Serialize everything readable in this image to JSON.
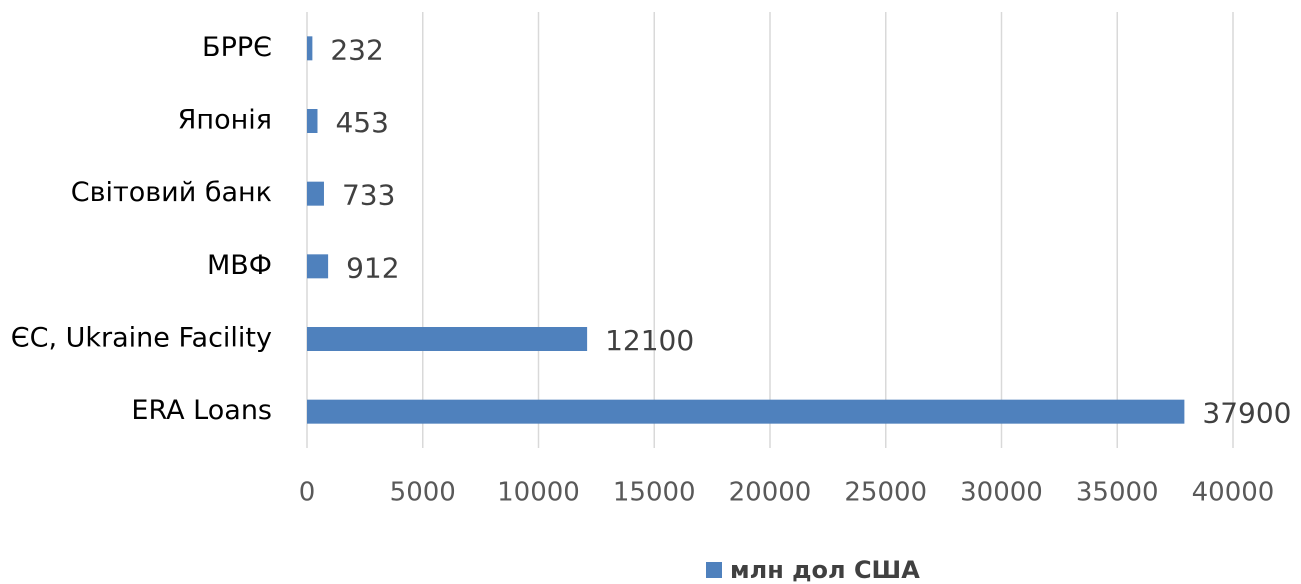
{
  "chart_data": {
    "type": "bar",
    "orientation": "horizontal",
    "categories": [
      "БРРЄ",
      "Японія",
      "Світовий банк",
      "МВФ",
      "ЄС, Ukraine Facility",
      "ERA Loans"
    ],
    "series": [
      {
        "name": "млн дол США",
        "color": "#4f81bd",
        "values": [
          232,
          453,
          733,
          912,
          12100,
          37900
        ]
      }
    ],
    "xlim": [
      0,
      40000
    ],
    "xticks": [
      0,
      5000,
      10000,
      15000,
      20000,
      25000,
      30000,
      35000,
      40000
    ],
    "grid": true,
    "legend": "bottom"
  }
}
